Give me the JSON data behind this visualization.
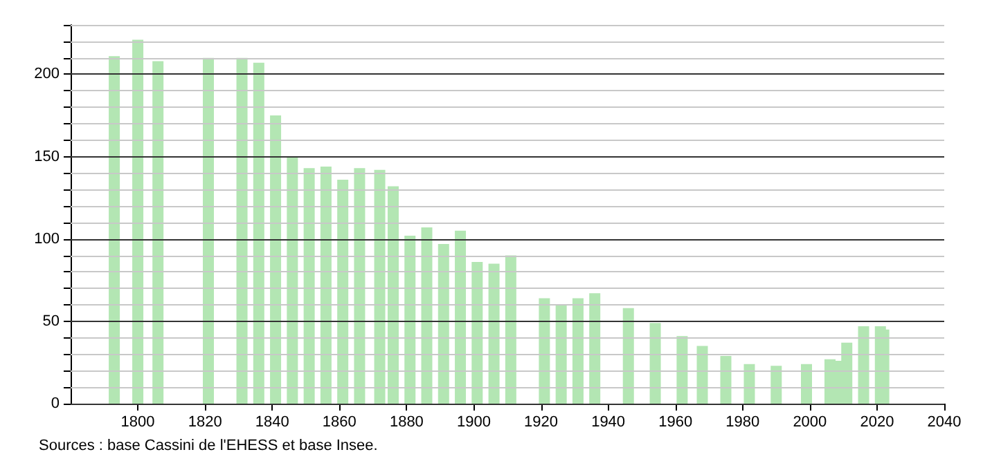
{
  "chart_data": {
    "type": "bar",
    "x": [
      1793,
      1800,
      1806,
      1821,
      1831,
      1836,
      1841,
      1846,
      1851,
      1856,
      1861,
      1866,
      1872,
      1876,
      1881,
      1886,
      1891,
      1896,
      1901,
      1906,
      1911,
      1921,
      1926,
      1931,
      1936,
      1946,
      1954,
      1962,
      1968,
      1975,
      1982,
      1990,
      1999,
      2006,
      2008,
      2011,
      2016,
      2021,
      2022
    ],
    "values": [
      211,
      221,
      208,
      210,
      210,
      207,
      175,
      150,
      143,
      144,
      136,
      143,
      142,
      132,
      102,
      107,
      97,
      105,
      86,
      85,
      90,
      64,
      60,
      64,
      67,
      58,
      49,
      41,
      35,
      29,
      24,
      23,
      24,
      27,
      26,
      37,
      47,
      47,
      45
    ],
    "color": "#b3e6b3",
    "xlim": [
      1780,
      2040
    ],
    "xticks": [
      1800,
      1820,
      1840,
      1860,
      1880,
      1900,
      1920,
      1940,
      1960,
      1980,
      2000,
      2020,
      2040
    ],
    "ylim": [
      0,
      230
    ],
    "yticks": [
      0,
      {
        "value": 10,
        "label": null
      },
      {
        "value": 20,
        "label": null
      },
      {
        "value": 30,
        "label": null
      },
      {
        "value": 40,
        "label": null
      },
      50,
      {
        "value": 60,
        "label": null
      },
      {
        "value": 70,
        "label": null
      },
      {
        "value": 80,
        "label": null
      },
      {
        "value": 90,
        "label": null
      },
      100,
      {
        "value": 110,
        "label": null
      },
      {
        "value": 120,
        "label": null
      },
      {
        "value": 130,
        "label": null
      },
      {
        "value": 140,
        "label": null
      },
      150,
      {
        "value": 160,
        "label": null
      },
      {
        "value": 170,
        "label": null
      },
      {
        "value": 180,
        "label": null
      },
      {
        "value": 190,
        "label": null
      },
      200,
      {
        "value": 210,
        "label": null
      },
      {
        "value": 220,
        "label": null
      },
      {
        "value": 230,
        "label": null
      }
    ],
    "grid": "y",
    "annotations": [
      "Sources : base Cassini de l'EHESS et base Insee."
    ]
  }
}
